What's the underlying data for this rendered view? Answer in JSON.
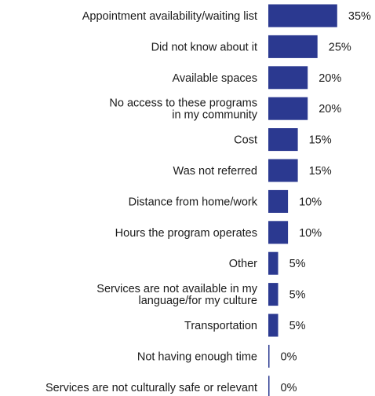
{
  "chart_data": {
    "type": "bar",
    "orientation": "horizontal",
    "categories": [
      [
        "Appointment availability/waiting list"
      ],
      [
        "Did not know about it"
      ],
      [
        "Available spaces"
      ],
      [
        "No access to these programs",
        "in my community"
      ],
      [
        "Cost"
      ],
      [
        "Was not referred"
      ],
      [
        "Distance from home/work"
      ],
      [
        "Hours the program operates"
      ],
      [
        "Other"
      ],
      [
        "Services are not available in my",
        "language/for my culture"
      ],
      [
        "Transportation"
      ],
      [
        "Not having enough time"
      ],
      [
        "Services are not culturally safe or relevant"
      ]
    ],
    "values": [
      35,
      25,
      20,
      20,
      15,
      15,
      10,
      10,
      5,
      5,
      5,
      0,
      0
    ],
    "value_labels": [
      "35%",
      "25%",
      "20%",
      "20%",
      "15%",
      "15%",
      "10%",
      "10%",
      "5%",
      "5%",
      "5%",
      "0%",
      "0%"
    ],
    "unit": "%",
    "title": "",
    "xlabel": "",
    "ylabel": "",
    "xlim": [
      0,
      35
    ],
    "grid": false,
    "legend": "none",
    "bar_color": "#2b3990"
  }
}
